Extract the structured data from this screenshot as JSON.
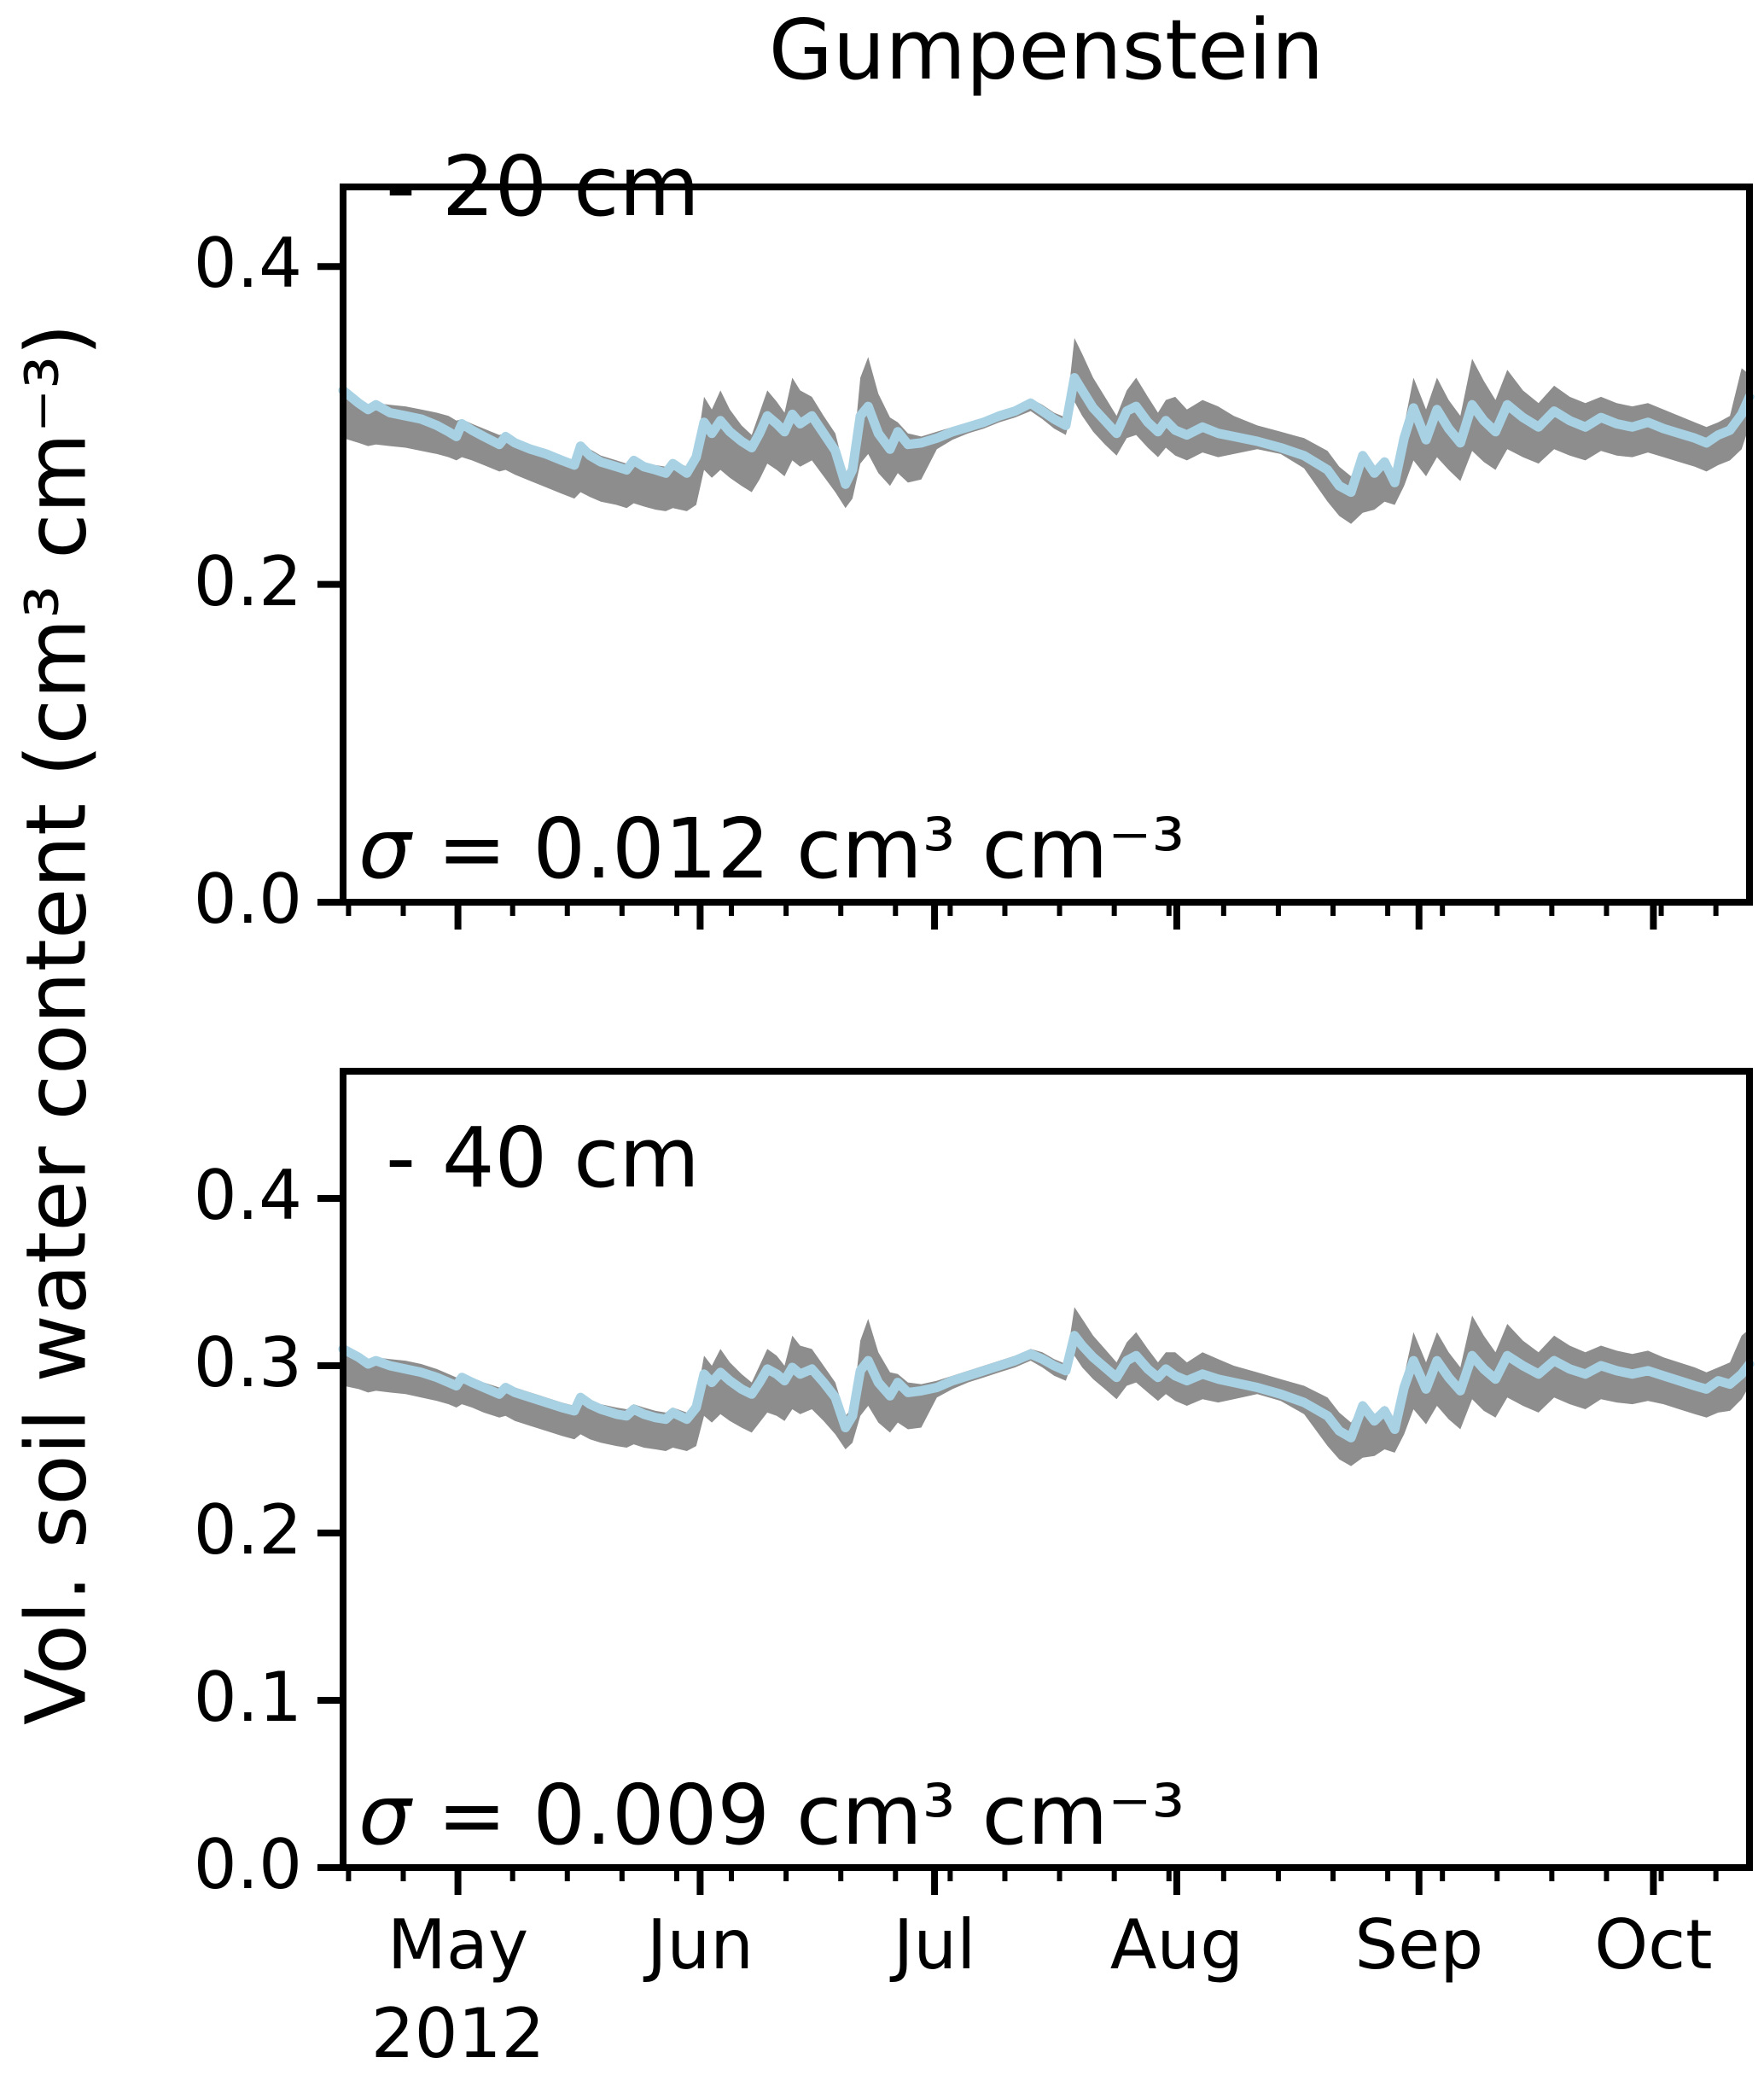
{
  "figure": {
    "title": "Gumpenstein",
    "ylabel": "Vol. soil water content (cm³ cm⁻³)",
    "year_label": "2012"
  },
  "colors": {
    "line_blue": "#a8d2e4",
    "band_gray": "#8d8d8d",
    "axis_black": "#000000",
    "background": "#ffffff"
  },
  "x_axis": {
    "total_days": 180,
    "xlim_estimate": [
      "2012-04-16",
      "2012-10-13"
    ],
    "months": [
      {
        "label": "May",
        "day": 14.7
      },
      {
        "label": "Jun",
        "day": 45.7
      },
      {
        "label": "Jul",
        "day": 75.7
      },
      {
        "label": "Aug",
        "day": 106.7
      },
      {
        "label": "Sep",
        "day": 137.7
      },
      {
        "label": "Oct",
        "day": 167.7
      }
    ],
    "year": {
      "label": "2012",
      "day": 14.7
    },
    "minor_tick_days": [
      0.7,
      7.7,
      21.7,
      28.7,
      35.7,
      42.7,
      49.7,
      56.7,
      63.7,
      70.7,
      77.7,
      84.7,
      91.7,
      98.7,
      105.7,
      112.7,
      119.7,
      126.7,
      133.7,
      140.7,
      147.7,
      154.7,
      161.7,
      168.7,
      175.7
    ]
  },
  "chart_data": [
    {
      "type": "line",
      "panel": "top",
      "title": "Gumpenstein",
      "depth_label": "- 20 cm",
      "sigma_symbol": "σ",
      "sigma_value": " = 0.012 cm³ cm⁻³",
      "sigma_full": "σ = 0.012 cm³ cm⁻³",
      "ylabel": "Vol. soil water content (cm³ cm⁻³)",
      "ylim": [
        0.0,
        0.45
      ],
      "yticks": [
        0.0,
        0.2,
        0.4
      ],
      "band_series": "gray band",
      "line_series": "light-blue line",
      "x_days": [
        0,
        2,
        3.2,
        4.2,
        6,
        8,
        10,
        12,
        13.5,
        14.5,
        15.2,
        16.5,
        18,
        20,
        20.8,
        22,
        24,
        26,
        28,
        29.6,
        30.4,
        31.6,
        33,
        35,
        36.3,
        37.2,
        38.5,
        40,
        41.3,
        42.2,
        44,
        45.2,
        46.2,
        47.2,
        48.3,
        49.5,
        51,
        52.3,
        53.3,
        54.3,
        55.5,
        56.5,
        57.5,
        58.5,
        60,
        61.5,
        63,
        64.3,
        65.2,
        66.2,
        67.2,
        68.5,
        70,
        71,
        72.3,
        74,
        76,
        78,
        80,
        82,
        84,
        86,
        88,
        89.5,
        91,
        92.5,
        93.6,
        94.6,
        96,
        97.5,
        99,
        100.3,
        101.5,
        103,
        104.3,
        105.3,
        106.5,
        108,
        110,
        112,
        114,
        117,
        120,
        123,
        126,
        127.5,
        129,
        130.5,
        132,
        133.3,
        134.6,
        135.8,
        137,
        138.6,
        140,
        141.5,
        143,
        144.5,
        146,
        147.5,
        149,
        151,
        153,
        155,
        157,
        159,
        161,
        163,
        165,
        167,
        169,
        171,
        173,
        174.5,
        176,
        177.5,
        179,
        180
      ],
      "line": [
        0.322,
        0.314,
        0.31,
        0.313,
        0.308,
        0.306,
        0.304,
        0.3,
        0.296,
        0.293,
        0.301,
        0.297,
        0.293,
        0.288,
        0.293,
        0.289,
        0.285,
        0.282,
        0.278,
        0.275,
        0.287,
        0.281,
        0.277,
        0.274,
        0.272,
        0.278,
        0.274,
        0.272,
        0.27,
        0.276,
        0.27,
        0.28,
        0.302,
        0.295,
        0.303,
        0.296,
        0.29,
        0.286,
        0.295,
        0.306,
        0.301,
        0.296,
        0.307,
        0.301,
        0.306,
        0.295,
        0.284,
        0.263,
        0.272,
        0.306,
        0.312,
        0.295,
        0.285,
        0.296,
        0.288,
        0.289,
        0.292,
        0.296,
        0.299,
        0.302,
        0.306,
        0.309,
        0.314,
        0.309,
        0.304,
        0.3,
        0.33,
        0.322,
        0.311,
        0.303,
        0.295,
        0.309,
        0.312,
        0.302,
        0.296,
        0.303,
        0.297,
        0.294,
        0.299,
        0.295,
        0.293,
        0.29,
        0.286,
        0.281,
        0.272,
        0.262,
        0.258,
        0.281,
        0.27,
        0.277,
        0.264,
        0.292,
        0.311,
        0.291,
        0.31,
        0.298,
        0.289,
        0.313,
        0.303,
        0.296,
        0.313,
        0.305,
        0.299,
        0.309,
        0.303,
        0.299,
        0.305,
        0.301,
        0.299,
        0.302,
        0.298,
        0.295,
        0.292,
        0.289,
        0.294,
        0.297,
        0.307,
        0.318
      ],
      "band_high": [
        0.32,
        0.313,
        0.312,
        0.314,
        0.313,
        0.312,
        0.31,
        0.308,
        0.306,
        0.303,
        0.304,
        0.301,
        0.298,
        0.294,
        0.295,
        0.292,
        0.288,
        0.285,
        0.281,
        0.278,
        0.289,
        0.285,
        0.281,
        0.278,
        0.276,
        0.28,
        0.277,
        0.275,
        0.274,
        0.278,
        0.274,
        0.284,
        0.318,
        0.31,
        0.322,
        0.31,
        0.3,
        0.294,
        0.308,
        0.322,
        0.315,
        0.308,
        0.33,
        0.322,
        0.318,
        0.306,
        0.295,
        0.27,
        0.278,
        0.33,
        0.343,
        0.32,
        0.305,
        0.302,
        0.295,
        0.293,
        0.296,
        0.299,
        0.302,
        0.305,
        0.309,
        0.312,
        0.317,
        0.313,
        0.308,
        0.305,
        0.355,
        0.345,
        0.33,
        0.318,
        0.306,
        0.322,
        0.33,
        0.318,
        0.308,
        0.316,
        0.318,
        0.31,
        0.316,
        0.312,
        0.306,
        0.3,
        0.296,
        0.292,
        0.284,
        0.274,
        0.268,
        0.283,
        0.274,
        0.28,
        0.27,
        0.3,
        0.33,
        0.31,
        0.33,
        0.316,
        0.306,
        0.342,
        0.328,
        0.316,
        0.335,
        0.322,
        0.314,
        0.325,
        0.318,
        0.314,
        0.318,
        0.314,
        0.312,
        0.314,
        0.31,
        0.306,
        0.302,
        0.299,
        0.302,
        0.306,
        0.336,
        0.332
      ],
      "band_low": [
        0.292,
        0.289,
        0.287,
        0.288,
        0.287,
        0.286,
        0.284,
        0.282,
        0.28,
        0.278,
        0.28,
        0.278,
        0.275,
        0.271,
        0.272,
        0.269,
        0.265,
        0.261,
        0.257,
        0.254,
        0.258,
        0.255,
        0.252,
        0.25,
        0.248,
        0.251,
        0.249,
        0.247,
        0.246,
        0.248,
        0.246,
        0.25,
        0.272,
        0.267,
        0.272,
        0.267,
        0.262,
        0.258,
        0.266,
        0.276,
        0.272,
        0.268,
        0.278,
        0.274,
        0.278,
        0.268,
        0.258,
        0.248,
        0.254,
        0.276,
        0.282,
        0.27,
        0.262,
        0.27,
        0.264,
        0.266,
        0.285,
        0.291,
        0.295,
        0.298,
        0.302,
        0.305,
        0.309,
        0.304,
        0.298,
        0.294,
        0.315,
        0.306,
        0.296,
        0.288,
        0.281,
        0.292,
        0.294,
        0.286,
        0.28,
        0.286,
        0.281,
        0.278,
        0.283,
        0.28,
        0.282,
        0.285,
        0.282,
        0.273,
        0.252,
        0.243,
        0.238,
        0.245,
        0.247,
        0.252,
        0.25,
        0.262,
        0.278,
        0.268,
        0.28,
        0.272,
        0.265,
        0.284,
        0.277,
        0.272,
        0.285,
        0.28,
        0.276,
        0.285,
        0.281,
        0.278,
        0.284,
        0.281,
        0.28,
        0.283,
        0.28,
        0.277,
        0.274,
        0.271,
        0.275,
        0.278,
        0.285,
        0.3
      ]
    },
    {
      "type": "line",
      "panel": "bottom",
      "title": "Gumpenstein",
      "depth_label": "- 40 cm",
      "sigma_symbol": "σ",
      "sigma_value": " = 0.009 cm³ cm⁻³",
      "sigma_full": "σ = 0.009 cm³ cm⁻³",
      "ylabel": "Vol. soil water content (cm³ cm⁻³)",
      "ylim": [
        0.0,
        0.476
      ],
      "yticks": [
        0.0,
        0.1,
        0.2,
        0.3,
        0.4
      ],
      "band_series": "gray band",
      "line_series": "light-blue line",
      "x_days": [
        0,
        2,
        3.2,
        4.2,
        6,
        8,
        10,
        12,
        13.5,
        14.5,
        15.2,
        16.5,
        18,
        20,
        20.8,
        22,
        24,
        26,
        28,
        29.6,
        30.4,
        31.6,
        33,
        35,
        36.3,
        37.2,
        38.5,
        40,
        41.3,
        42.2,
        44,
        45.2,
        46.2,
        47.2,
        48.3,
        49.5,
        51,
        52.3,
        53.3,
        54.3,
        55.5,
        56.5,
        57.5,
        58.5,
        60,
        61.5,
        63,
        64.3,
        65.2,
        66.2,
        67.2,
        68.5,
        70,
        71,
        72.3,
        74,
        76,
        78,
        80,
        82,
        84,
        86,
        88,
        89.5,
        91,
        92.5,
        93.6,
        94.6,
        96,
        97.5,
        99,
        100.3,
        101.5,
        103,
        104.3,
        105.3,
        106.5,
        108,
        110,
        112,
        114,
        117,
        120,
        123,
        126,
        127.5,
        129,
        130.5,
        132,
        133.3,
        134.6,
        135.8,
        137,
        138.6,
        140,
        141.5,
        143,
        144.5,
        146,
        147.5,
        149,
        151,
        153,
        155,
        157,
        159,
        161,
        163,
        165,
        167,
        169,
        171,
        173,
        174.5,
        176,
        177.5,
        179,
        180
      ],
      "line": [
        0.31,
        0.305,
        0.301,
        0.303,
        0.3,
        0.298,
        0.296,
        0.293,
        0.29,
        0.288,
        0.293,
        0.29,
        0.287,
        0.283,
        0.287,
        0.284,
        0.281,
        0.278,
        0.275,
        0.273,
        0.281,
        0.277,
        0.274,
        0.271,
        0.27,
        0.274,
        0.271,
        0.269,
        0.268,
        0.272,
        0.268,
        0.275,
        0.295,
        0.29,
        0.296,
        0.291,
        0.286,
        0.283,
        0.29,
        0.298,
        0.295,
        0.291,
        0.299,
        0.295,
        0.298,
        0.29,
        0.281,
        0.263,
        0.27,
        0.297,
        0.303,
        0.29,
        0.282,
        0.29,
        0.284,
        0.285,
        0.287,
        0.291,
        0.294,
        0.297,
        0.3,
        0.303,
        0.307,
        0.304,
        0.3,
        0.297,
        0.318,
        0.312,
        0.305,
        0.299,
        0.293,
        0.303,
        0.306,
        0.298,
        0.293,
        0.298,
        0.294,
        0.291,
        0.295,
        0.292,
        0.29,
        0.287,
        0.283,
        0.278,
        0.27,
        0.261,
        0.257,
        0.276,
        0.267,
        0.273,
        0.262,
        0.287,
        0.303,
        0.286,
        0.303,
        0.293,
        0.285,
        0.306,
        0.298,
        0.292,
        0.306,
        0.3,
        0.295,
        0.303,
        0.298,
        0.295,
        0.3,
        0.297,
        0.295,
        0.297,
        0.294,
        0.291,
        0.288,
        0.286,
        0.291,
        0.289,
        0.295,
        0.301
      ],
      "band_high": [
        0.308,
        0.306,
        0.304,
        0.305,
        0.304,
        0.303,
        0.301,
        0.298,
        0.295,
        0.293,
        0.295,
        0.293,
        0.29,
        0.287,
        0.289,
        0.287,
        0.284,
        0.281,
        0.278,
        0.276,
        0.283,
        0.28,
        0.277,
        0.275,
        0.274,
        0.277,
        0.275,
        0.273,
        0.272,
        0.275,
        0.272,
        0.28,
        0.306,
        0.3,
        0.31,
        0.302,
        0.295,
        0.29,
        0.3,
        0.31,
        0.306,
        0.3,
        0.318,
        0.312,
        0.31,
        0.3,
        0.29,
        0.27,
        0.275,
        0.315,
        0.328,
        0.308,
        0.296,
        0.295,
        0.29,
        0.289,
        0.291,
        0.294,
        0.297,
        0.3,
        0.303,
        0.306,
        0.31,
        0.308,
        0.304,
        0.301,
        0.335,
        0.328,
        0.318,
        0.31,
        0.302,
        0.314,
        0.32,
        0.31,
        0.302,
        0.308,
        0.308,
        0.302,
        0.308,
        0.304,
        0.3,
        0.296,
        0.292,
        0.288,
        0.281,
        0.272,
        0.266,
        0.279,
        0.271,
        0.276,
        0.268,
        0.294,
        0.32,
        0.302,
        0.32,
        0.308,
        0.299,
        0.33,
        0.318,
        0.308,
        0.325,
        0.315,
        0.308,
        0.318,
        0.312,
        0.308,
        0.312,
        0.309,
        0.307,
        0.309,
        0.305,
        0.302,
        0.299,
        0.296,
        0.299,
        0.302,
        0.318,
        0.322
      ],
      "band_low": [
        0.288,
        0.286,
        0.284,
        0.285,
        0.284,
        0.283,
        0.281,
        0.279,
        0.277,
        0.275,
        0.277,
        0.275,
        0.272,
        0.269,
        0.27,
        0.267,
        0.264,
        0.261,
        0.258,
        0.256,
        0.259,
        0.256,
        0.254,
        0.252,
        0.251,
        0.253,
        0.251,
        0.25,
        0.249,
        0.251,
        0.249,
        0.252,
        0.27,
        0.266,
        0.271,
        0.267,
        0.263,
        0.26,
        0.266,
        0.272,
        0.27,
        0.267,
        0.274,
        0.271,
        0.274,
        0.267,
        0.259,
        0.25,
        0.254,
        0.27,
        0.276,
        0.266,
        0.26,
        0.266,
        0.262,
        0.263,
        0.281,
        0.286,
        0.29,
        0.293,
        0.296,
        0.299,
        0.303,
        0.299,
        0.294,
        0.291,
        0.306,
        0.299,
        0.292,
        0.286,
        0.28,
        0.288,
        0.29,
        0.284,
        0.279,
        0.283,
        0.279,
        0.276,
        0.28,
        0.278,
        0.28,
        0.283,
        0.279,
        0.271,
        0.252,
        0.244,
        0.24,
        0.245,
        0.246,
        0.25,
        0.248,
        0.259,
        0.274,
        0.265,
        0.276,
        0.268,
        0.262,
        0.28,
        0.273,
        0.269,
        0.281,
        0.276,
        0.272,
        0.281,
        0.277,
        0.274,
        0.28,
        0.278,
        0.277,
        0.279,
        0.277,
        0.274,
        0.271,
        0.269,
        0.272,
        0.273,
        0.28,
        0.288
      ]
    }
  ]
}
